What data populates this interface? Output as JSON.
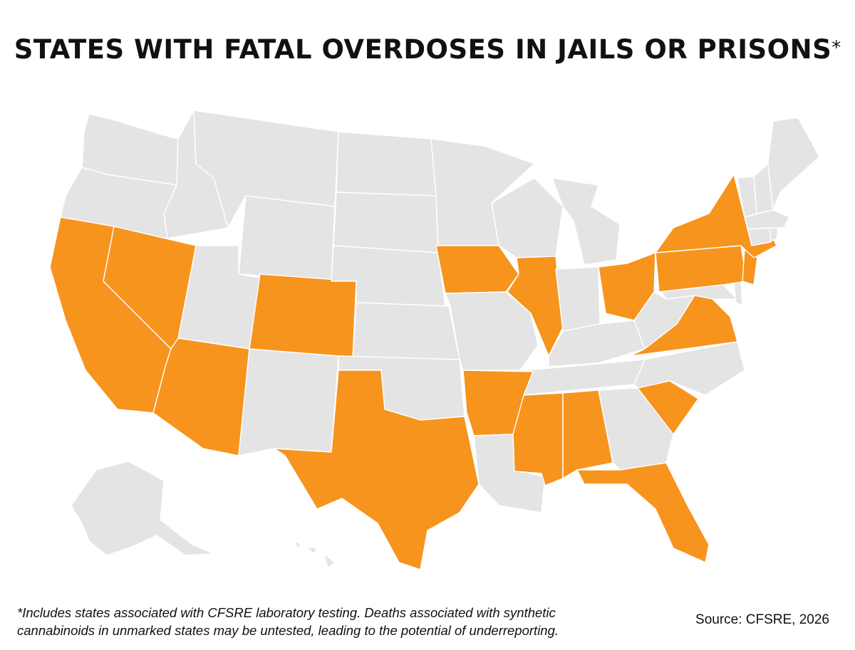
{
  "title": "STATES WITH FATAL OVERDOSES IN JAILS OR PRISONS",
  "title_marker": "*",
  "footnote_line1": "*Includes states associated with CFSRE laboratory testing. Deaths associated with synthetic",
  "footnote_line2": "cannabinoids in unmarked states may be untested, leading to the potential of underreporting.",
  "source": "Source: CFSRE, 2026",
  "colors": {
    "highlighted": "#F7941D",
    "unmarked": "#E4E4E4",
    "border": "#FFFFFF"
  },
  "map": {
    "highlighted_states": [
      "CA",
      "NV",
      "AZ",
      "CO",
      "TX",
      "IA",
      "IL",
      "AR",
      "MS",
      "AL",
      "FL",
      "SC",
      "VA",
      "OH",
      "PA",
      "NY",
      "NJ"
    ],
    "unmarked_states": [
      "WA",
      "OR",
      "ID",
      "MT",
      "WY",
      "UT",
      "NM",
      "ND",
      "SD",
      "NE",
      "KS",
      "OK",
      "MN",
      "MO",
      "LA",
      "WI",
      "MI",
      "IN",
      "KY",
      "TN",
      "GA",
      "NC",
      "WV",
      "MD",
      "DE",
      "CT",
      "RI",
      "MA",
      "VT",
      "NH",
      "ME",
      "AK",
      "HI"
    ]
  }
}
